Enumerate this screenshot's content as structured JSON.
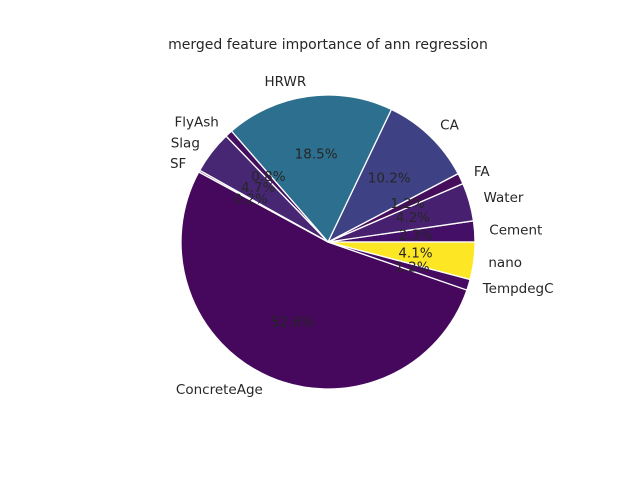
{
  "chart_data": {
    "type": "pie",
    "title": "merged feature importance of ann regression",
    "start_angle_deg": 0,
    "direction": "counterclockwise",
    "slices": [
      {
        "label": "Cement",
        "value": 2.3,
        "pct_label": "2.3%",
        "color": "#440f67"
      },
      {
        "label": "Water",
        "value": 4.2,
        "pct_label": "4.2%",
        "color": "#47216f"
      },
      {
        "label": "FA",
        "value": 1.2,
        "pct_label": "1.2%",
        "color": "#450d5c"
      },
      {
        "label": "CA",
        "value": 10.2,
        "pct_label": "10.2%",
        "color": "#3e4183"
      },
      {
        "label": "HRWR",
        "value": 18.5,
        "pct_label": "18.5%",
        "color": "#2d6f8e"
      },
      {
        "label": "FlyAsh",
        "value": 0.8,
        "pct_label": "0.8%",
        "color": "#440f5f"
      },
      {
        "label": "Slag",
        "value": 4.7,
        "pct_label": "4.7%",
        "color": "#472674"
      },
      {
        "label": "SF",
        "value": 0.2,
        "pct_label": "0.2%",
        "color": "#440a58"
      },
      {
        "label": "ConcreteAge",
        "value": 52.6,
        "pct_label": "52.6%",
        "color": "#45085c"
      },
      {
        "label": "TempdegC",
        "value": 1.2,
        "pct_label": "1.2%",
        "color": "#460c61"
      },
      {
        "label": "nano",
        "value": 4.1,
        "pct_label": "4.1%",
        "color": "#fde725"
      }
    ]
  }
}
